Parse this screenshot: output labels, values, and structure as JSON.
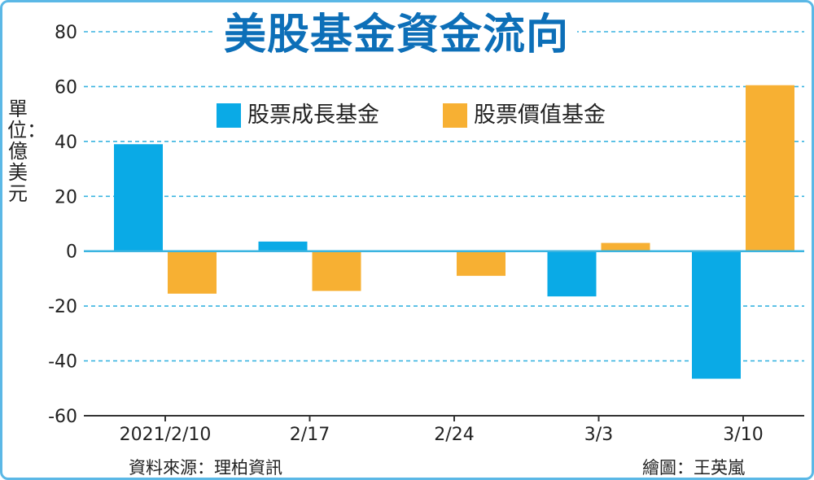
{
  "chart_data": {
    "type": "bar",
    "title": "美股基金資金流向",
    "ylabel": "單位：億美元",
    "categories": [
      "2021/2/10",
      "2/17",
      "2/24",
      "3/3",
      "3/10"
    ],
    "series": [
      {
        "name": "股票成長基金",
        "color": "#0aaae6",
        "values": [
          39,
          3.5,
          0,
          -16.5,
          -46.5
        ]
      },
      {
        "name": "股票價值基金",
        "color": "#f7b033",
        "values": [
          -15.5,
          -14.5,
          -9,
          3,
          60.5
        ]
      }
    ],
    "ylim": [
      -60,
      80
    ],
    "yticks": [
      80,
      60,
      40,
      20,
      0,
      -20,
      -40,
      -60
    ],
    "grid": true,
    "legend_position": "top-center"
  },
  "footer": {
    "source": "資料來源：理柏資訊",
    "credit": "繪圖：王英嵐"
  },
  "colors": {
    "title": "#0d6fb8",
    "gridline": "#3ab4e0",
    "zero_line": "#3ab4e0",
    "frame": "#5bb8e6"
  }
}
